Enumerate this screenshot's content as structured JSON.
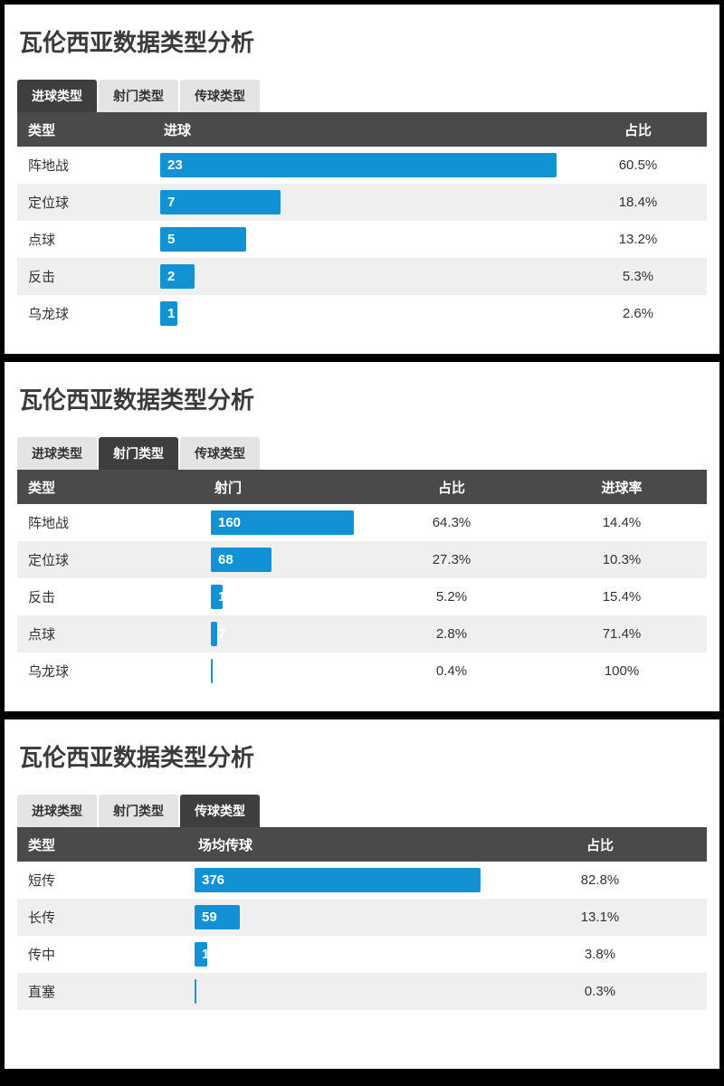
{
  "accent_color": "#1291d4",
  "header_bg": "#4a4a4a",
  "panels": [
    {
      "title": "瓦伦西亚数据类型分析",
      "tabs": [
        "进球类型",
        "射门类型",
        "传球类型"
      ],
      "active_tab": 0,
      "columns": [
        "类型",
        "进球",
        "占比"
      ],
      "max_value": 23,
      "rows": [
        {
          "type": "阵地战",
          "value": 23,
          "pct": "60.5%"
        },
        {
          "type": "定位球",
          "value": 7,
          "pct": "18.4%"
        },
        {
          "type": "点球",
          "value": 5,
          "pct": "13.2%"
        },
        {
          "type": "反击",
          "value": 2,
          "pct": "5.3%"
        },
        {
          "type": "乌龙球",
          "value": 1,
          "pct": "2.6%"
        }
      ]
    },
    {
      "title": "瓦伦西亚数据类型分析",
      "tabs": [
        "进球类型",
        "射门类型",
        "传球类型"
      ],
      "active_tab": 1,
      "columns": [
        "类型",
        "射门",
        "占比",
        "进球率"
      ],
      "max_value": 160,
      "rows": [
        {
          "type": "阵地战",
          "value": 160,
          "pct": "64.3%",
          "rate": "14.4%"
        },
        {
          "type": "定位球",
          "value": 68,
          "pct": "27.3%",
          "rate": "10.3%"
        },
        {
          "type": "反击",
          "value": 13,
          "pct": "5.2%",
          "rate": "15.4%"
        },
        {
          "type": "点球",
          "value": 7,
          "pct": "2.8%",
          "rate": "71.4%"
        },
        {
          "type": "乌龙球",
          "value": 1,
          "pct": "0.4%",
          "rate": "100%"
        }
      ]
    },
    {
      "title": "瓦伦西亚数据类型分析",
      "tabs": [
        "进球类型",
        "射门类型",
        "传球类型"
      ],
      "active_tab": 2,
      "columns": [
        "类型",
        "场均传球",
        "占比"
      ],
      "max_value": 376,
      "rows": [
        {
          "type": "短传",
          "value": 376,
          "pct": "82.8%"
        },
        {
          "type": "长传",
          "value": 59,
          "pct": "13.1%"
        },
        {
          "type": "传中",
          "value": 17,
          "pct": "3.8%"
        },
        {
          "type": "直塞",
          "value": 2,
          "pct": "0.3%"
        }
      ]
    }
  ],
  "chart_data": [
    {
      "type": "bar",
      "title": "瓦伦西亚数据类型分析 - 进球类型",
      "categories": [
        "阵地战",
        "定位球",
        "点球",
        "反击",
        "乌龙球"
      ],
      "values": [
        23,
        7,
        5,
        2,
        1
      ],
      "percentages": [
        "60.5%",
        "18.4%",
        "13.2%",
        "5.3%",
        "2.6%"
      ],
      "xlabel": "进球",
      "ylabel": "类型",
      "xlim": [
        0,
        23
      ],
      "grid": false,
      "legend": "none"
    },
    {
      "type": "bar",
      "title": "瓦伦西亚数据类型分析 - 射门类型",
      "categories": [
        "阵地战",
        "定位球",
        "反击",
        "点球",
        "乌龙球"
      ],
      "values": [
        160,
        68,
        13,
        7,
        1
      ],
      "percentages": [
        "64.3%",
        "27.3%",
        "5.2%",
        "2.8%",
        "0.4%"
      ],
      "goal_rates": [
        "14.4%",
        "10.3%",
        "15.4%",
        "71.4%",
        "100%"
      ],
      "xlabel": "射门",
      "ylabel": "类型",
      "xlim": [
        0,
        160
      ],
      "grid": false,
      "legend": "none"
    },
    {
      "type": "bar",
      "title": "瓦伦西亚数据类型分析 - 传球类型",
      "categories": [
        "短传",
        "长传",
        "传中",
        "直塞"
      ],
      "values": [
        376,
        59,
        17,
        2
      ],
      "percentages": [
        "82.8%",
        "13.1%",
        "3.8%",
        "0.3%"
      ],
      "xlabel": "场均传球",
      "ylabel": "类型",
      "xlim": [
        0,
        376
      ],
      "grid": false,
      "legend": "none"
    }
  ]
}
